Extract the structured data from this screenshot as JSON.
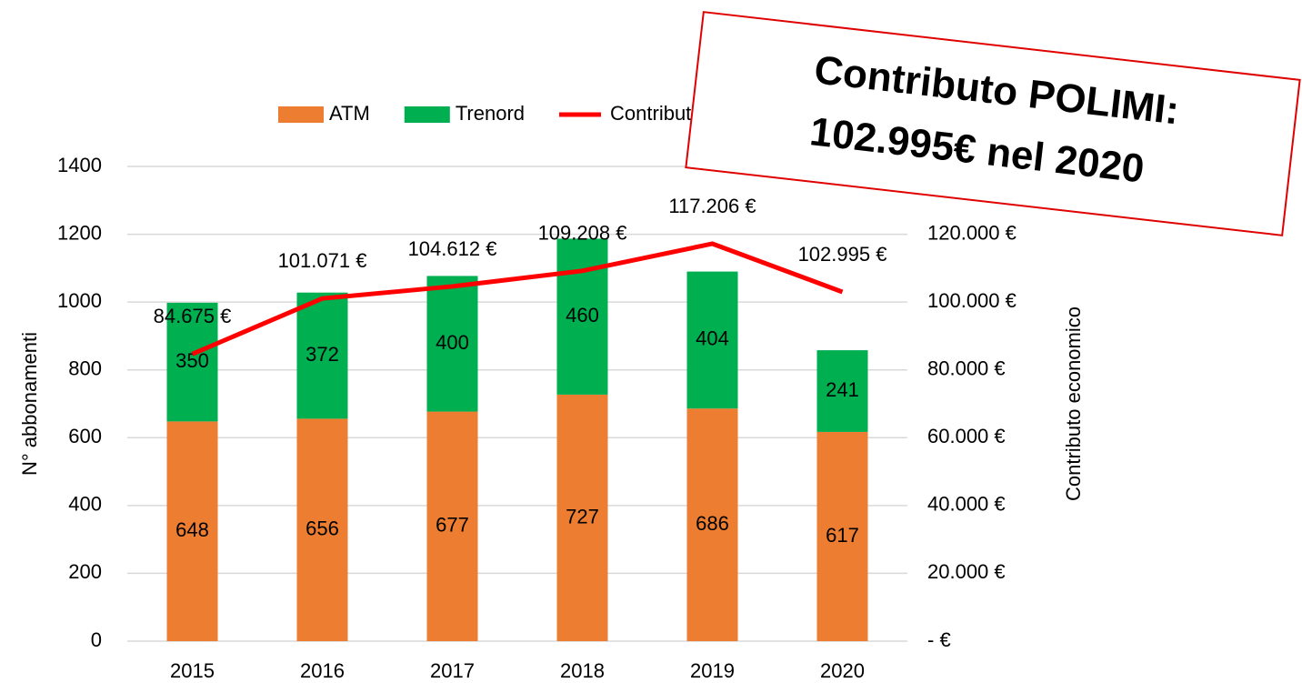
{
  "chart_data": {
    "type": "bar",
    "stacked": true,
    "categories": [
      "2015",
      "2016",
      "2017",
      "2018",
      "2019",
      "2020"
    ],
    "series": [
      {
        "name": "ATM",
        "color": "#ed7d31",
        "values": [
          648,
          656,
          677,
          727,
          686,
          617
        ]
      },
      {
        "name": "Trenord",
        "color": "#00b050",
        "values": [
          350,
          372,
          400,
          460,
          404,
          241
        ]
      },
      {
        "name": "Contributo PoliMi",
        "color": "#ff0000",
        "type": "line",
        "axis": "y2",
        "values": [
          84675,
          101071,
          104612,
          109208,
          117206,
          102995
        ],
        "value_labels": [
          "84.675 €",
          "101.071 €",
          "104.612 €",
          "109.208 €",
          "117.206 €",
          "102.995 €"
        ]
      }
    ],
    "ylabel": "N° abbonamenti",
    "y2label": "Contributo economico",
    "ylim": [
      0,
      1400
    ],
    "yticks": [
      0,
      200,
      400,
      600,
      800,
      1000,
      1200,
      1400
    ],
    "y2lim": [
      0,
      140000
    ],
    "y2ticks": [
      {
        "value": 0,
        "label": "-   €"
      },
      {
        "value": 20000,
        "label": "20.000 €"
      },
      {
        "value": 40000,
        "label": "40.000 €"
      },
      {
        "value": 60000,
        "label": "60.000 €"
      },
      {
        "value": 80000,
        "label": "80.000 €"
      },
      {
        "value": 100000,
        "label": "100.000 €"
      },
      {
        "value": 120000,
        "label": "120.000 €"
      }
    ],
    "grid": true,
    "legend": "top",
    "annotation": [
      "Contributo POLIMI:",
      "102.995€ nel 2020"
    ]
  }
}
